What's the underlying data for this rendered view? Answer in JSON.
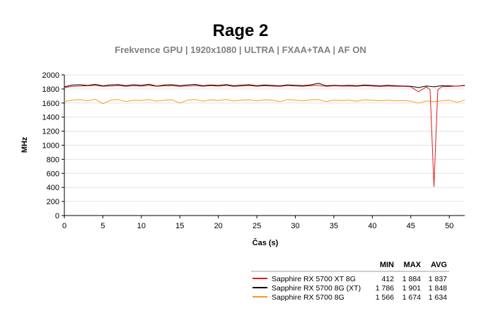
{
  "chart_data": {
    "type": "line",
    "title": "Rage 2",
    "subtitle": "Frekvence GPU | 1920x1080 | ULTRA | FXAA+TAA | AF ON",
    "xlabel": "Čas (s)",
    "ylabel": "MHz",
    "xlim": [
      0,
      52
    ],
    "ylim": [
      0,
      2000
    ],
    "x_ticks": [
      "0",
      "5",
      "10",
      "15",
      "20",
      "25",
      "30",
      "35",
      "40",
      "45",
      "50"
    ],
    "y_ticks": [
      "0",
      "200",
      "400",
      "600",
      "800",
      "1000",
      "1200",
      "1400",
      "1600",
      "1800",
      "2000"
    ],
    "grid": "horizontal",
    "stats_columns": [
      "MIN",
      "MAX",
      "AVG"
    ],
    "series": [
      {
        "name": "Sapphire RX 5700 XT 8G",
        "color": "#e31a1c",
        "stats": [
          "412",
          "1 884",
          "1 837"
        ],
        "x": [
          0,
          1,
          2,
          3,
          4,
          5,
          6,
          7,
          8,
          9,
          10,
          11,
          12,
          13,
          14,
          15,
          16,
          17,
          18,
          19,
          20,
          21,
          22,
          23,
          24,
          25,
          26,
          27,
          28,
          29,
          30,
          31,
          32,
          33,
          34,
          35,
          36,
          37,
          38,
          39,
          40,
          41,
          42,
          43,
          44,
          45,
          46,
          47,
          47.5,
          48,
          48.5,
          49,
          50,
          51,
          52
        ],
        "y": [
          1820,
          1835,
          1840,
          1845,
          1850,
          1838,
          1842,
          1848,
          1836,
          1845,
          1840,
          1850,
          1838,
          1844,
          1846,
          1835,
          1842,
          1848,
          1838,
          1846,
          1840,
          1850,
          1835,
          1842,
          1848,
          1838,
          1845,
          1840,
          1836,
          1848,
          1842,
          1838,
          1846,
          1850,
          1836,
          1844,
          1840,
          1842,
          1838,
          1846,
          1840,
          1835,
          1842,
          1838,
          1836,
          1830,
          1760,
          1830,
          1790,
          412,
          1790,
          1830,
          1835,
          1840,
          1845
        ]
      },
      {
        "name": "Sapphire RX 5700 8G (XT)",
        "color": "#000000",
        "stats": [
          "1 786",
          "1 901",
          "1 848"
        ],
        "x": [
          0,
          1,
          2,
          3,
          4,
          5,
          6,
          7,
          8,
          9,
          10,
          11,
          12,
          13,
          14,
          15,
          16,
          17,
          18,
          19,
          20,
          21,
          22,
          23,
          24,
          25,
          26,
          27,
          28,
          29,
          30,
          31,
          32,
          33,
          34,
          35,
          36,
          37,
          38,
          39,
          40,
          41,
          42,
          43,
          44,
          45,
          46,
          47,
          48,
          49,
          50,
          51,
          52
        ],
        "y": [
          1830,
          1855,
          1860,
          1850,
          1865,
          1845,
          1858,
          1862,
          1848,
          1860,
          1852,
          1866,
          1842,
          1856,
          1860,
          1848,
          1858,
          1864,
          1846,
          1856,
          1850,
          1862,
          1846,
          1854,
          1860,
          1846,
          1856,
          1850,
          1845,
          1858,
          1852,
          1848,
          1858,
          1880,
          1846,
          1852,
          1848,
          1852,
          1846,
          1856,
          1850,
          1845,
          1852,
          1846,
          1842,
          1838,
          1820,
          1842,
          1830,
          1846,
          1844,
          1840,
          1852
        ]
      },
      {
        "name": "Sapphire RX 5700 8G",
        "color": "#f59c1a",
        "stats": [
          "1 566",
          "1 674",
          "1 634"
        ],
        "x": [
          0,
          1,
          2,
          3,
          4,
          5,
          6,
          7,
          8,
          9,
          10,
          11,
          12,
          13,
          14,
          15,
          16,
          17,
          18,
          19,
          20,
          21,
          22,
          23,
          24,
          25,
          26,
          27,
          28,
          29,
          30,
          31,
          32,
          33,
          34,
          35,
          36,
          37,
          38,
          39,
          40,
          41,
          42,
          43,
          44,
          45,
          46,
          47,
          48,
          49,
          50,
          51,
          52
        ],
        "y": [
          1620,
          1640,
          1650,
          1630,
          1655,
          1590,
          1640,
          1650,
          1620,
          1640,
          1635,
          1650,
          1625,
          1640,
          1645,
          1600,
          1640,
          1650,
          1625,
          1645,
          1635,
          1650,
          1630,
          1640,
          1645,
          1630,
          1645,
          1640,
          1620,
          1650,
          1640,
          1630,
          1645,
          1650,
          1620,
          1640,
          1635,
          1640,
          1625,
          1645,
          1640,
          1630,
          1640,
          1630,
          1635,
          1625,
          1600,
          1630,
          1620,
          1630,
          1640,
          1610,
          1640
        ]
      }
    ]
  }
}
